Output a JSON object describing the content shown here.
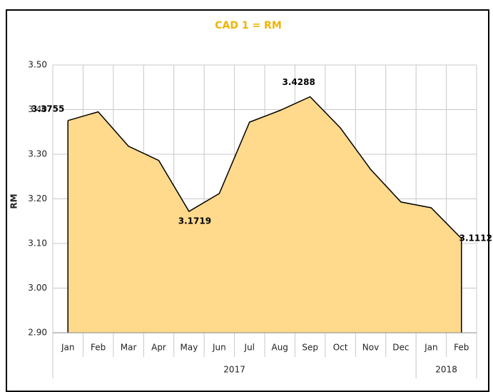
{
  "chart_data": {
    "type": "area",
    "title": "CAD 1 = RM",
    "y_label": "RM",
    "categories": [
      "Jan",
      "Feb",
      "Mar",
      "Apr",
      "May",
      "Jun",
      "Jul",
      "Aug",
      "Sep",
      "Oct",
      "Nov",
      "Dec",
      "Jan",
      "Feb"
    ],
    "category_groups": [
      {
        "label": "2017",
        "count": 12
      },
      {
        "label": "2018",
        "count": 2
      }
    ],
    "values": [
      3.3755,
      3.395,
      3.318,
      3.286,
      3.1719,
      3.212,
      3.372,
      3.398,
      3.4288,
      3.359,
      3.266,
      3.193,
      3.18,
      3.1112
    ],
    "value_labels": [
      "3.3755",
      null,
      null,
      null,
      "3.1719",
      null,
      null,
      null,
      "3.4288",
      null,
      null,
      null,
      null,
      "3.1112"
    ],
    "color": "#ffd98c",
    "line_color": "#000000",
    "title_color": "#f0b400",
    "ylim": [
      2.9,
      3.5
    ],
    "yticks": [
      {
        "value": 2.9,
        "label": "2.90"
      },
      {
        "value": 3.0,
        "label": "3.00"
      },
      {
        "value": 3.1,
        "label": "3.10"
      },
      {
        "value": 3.2,
        "label": "3.20"
      },
      {
        "value": 3.3,
        "label": "3.30"
      },
      {
        "value": 3.4,
        "label": "3.40"
      },
      {
        "value": 3.5,
        "label": "3.50"
      }
    ],
    "grid": true
  }
}
